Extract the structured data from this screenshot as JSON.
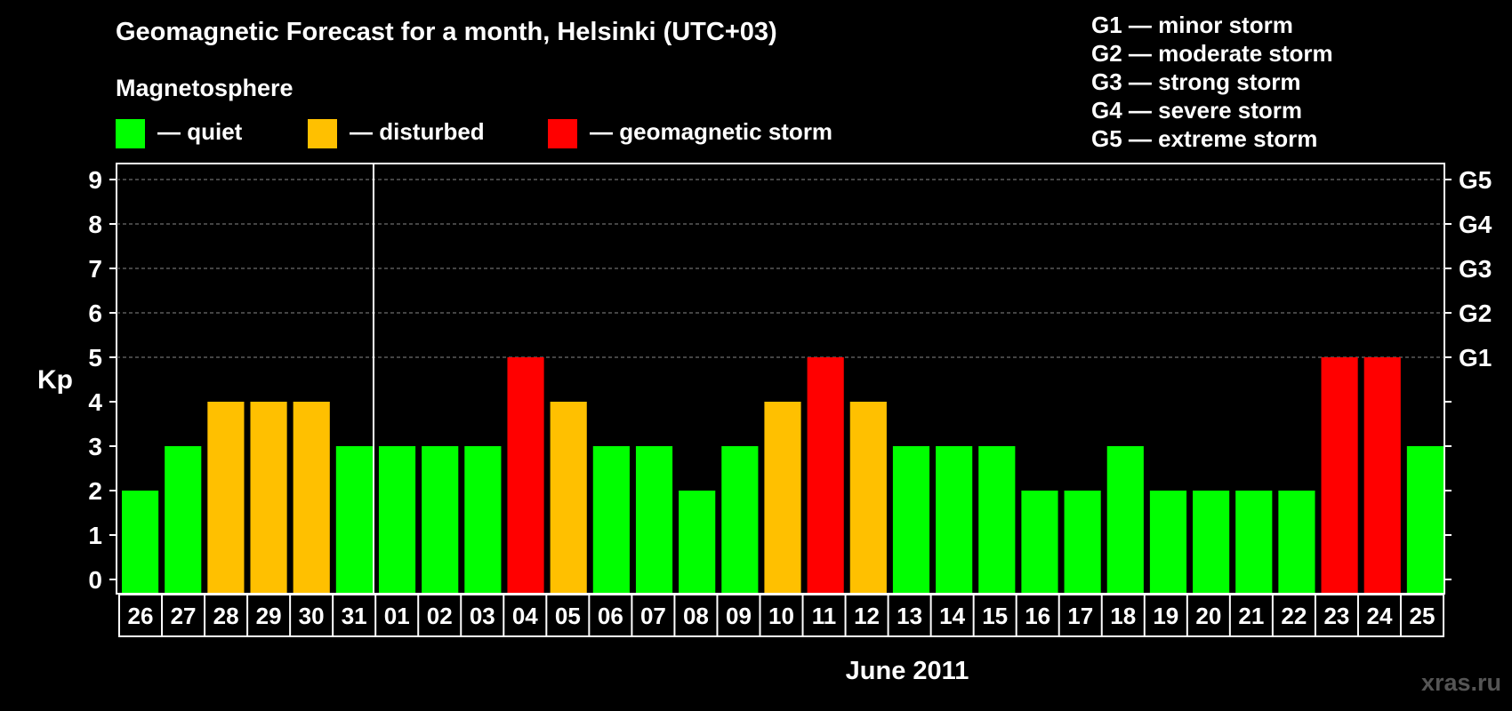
{
  "title": "Geomagnetic Forecast for a month, Helsinki (UTC+03)",
  "legend": {
    "heading": "Magnetosphere",
    "items": [
      {
        "label": "— quiet",
        "color": "#00ff00"
      },
      {
        "label": "— disturbed",
        "color": "#ffc000"
      },
      {
        "label": "— geomagnetic storm",
        "color": "#ff0000"
      }
    ]
  },
  "storm_levels": [
    "G1 — minor storm",
    "G2 — moderate storm",
    "G3 — strong storm",
    "G4 — severe storm",
    "G5 — extreme storm"
  ],
  "watermark": "xras.ru",
  "chart_data": {
    "type": "bar",
    "title": "Geomagnetic Forecast for a month, Helsinki (UTC+03)",
    "xlabel": "June 2011",
    "ylabel": "Kp",
    "ylim": [
      0,
      9
    ],
    "yticks": [
      0,
      1,
      2,
      3,
      4,
      5,
      6,
      7,
      8,
      9
    ],
    "right_axis_labels": [
      {
        "value": 5,
        "label": "G1"
      },
      {
        "value": 6,
        "label": "G2"
      },
      {
        "value": 7,
        "label": "G3"
      },
      {
        "value": 8,
        "label": "G4"
      },
      {
        "value": 9,
        "label": "G5"
      }
    ],
    "gridlines_at": [
      5,
      6,
      7,
      8,
      9
    ],
    "month_divider_after_index": 5,
    "categories": [
      "26",
      "27",
      "28",
      "29",
      "30",
      "31",
      "01",
      "02",
      "03",
      "04",
      "05",
      "06",
      "07",
      "08",
      "09",
      "10",
      "11",
      "12",
      "13",
      "14",
      "15",
      "16",
      "17",
      "18",
      "19",
      "20",
      "21",
      "22",
      "23",
      "24",
      "25"
    ],
    "values": [
      2,
      3,
      4,
      4,
      4,
      3,
      3,
      3,
      3,
      5,
      4,
      3,
      3,
      2,
      3,
      4,
      5,
      4,
      3,
      3,
      3,
      2,
      2,
      3,
      2,
      2,
      2,
      2,
      5,
      5,
      3
    ],
    "colors": {
      "quiet": "#00ff00",
      "disturbed": "#ffc000",
      "storm": "#ff0000"
    },
    "thresholds": {
      "disturbed_from": 4,
      "storm_from": 5
    }
  }
}
